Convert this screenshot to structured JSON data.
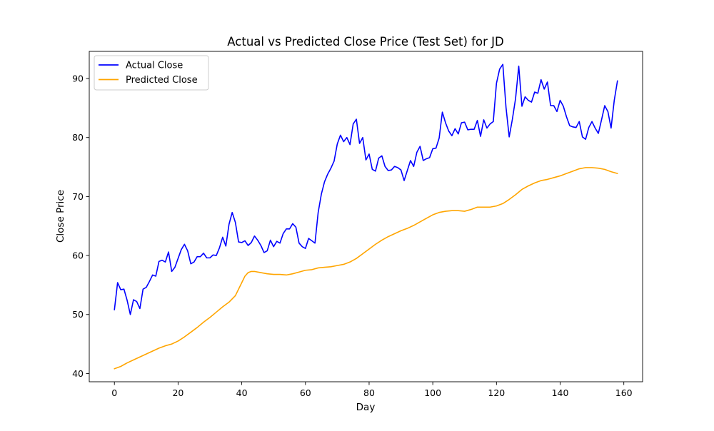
{
  "chart_data": {
    "type": "line",
    "title": "Actual vs Predicted Close Price (Test Set) for JD",
    "xlabel": "Day",
    "ylabel": "Close Price",
    "xlim": [
      -7.9,
      165.9
    ],
    "ylim": [
      38.6,
      94.6
    ],
    "xticks": [
      0,
      20,
      40,
      60,
      80,
      100,
      120,
      140,
      160
    ],
    "yticks": [
      40,
      50,
      60,
      70,
      80,
      90
    ],
    "grid": false,
    "legend_position": "upper-left",
    "series": [
      {
        "name": "Actual Close",
        "color": "#0000ff",
        "x": [
          0,
          1,
          2,
          3,
          4,
          5,
          6,
          7,
          8,
          9,
          10,
          11,
          12,
          13,
          14,
          15,
          16,
          17,
          18,
          19,
          20,
          21,
          22,
          23,
          24,
          25,
          26,
          27,
          28,
          29,
          30,
          31,
          32,
          33,
          34,
          35,
          36,
          37,
          38,
          39,
          40,
          41,
          42,
          43,
          44,
          45,
          46,
          47,
          48,
          49,
          50,
          51,
          52,
          53,
          54,
          55,
          56,
          57,
          58,
          59,
          60,
          61,
          62,
          63,
          64,
          65,
          66,
          67,
          68,
          69,
          70,
          71,
          72,
          73,
          74,
          75,
          76,
          77,
          78,
          79,
          80,
          81,
          82,
          83,
          84,
          85,
          86,
          87,
          88,
          89,
          90,
          91,
          92,
          93,
          94,
          95,
          96,
          97,
          98,
          99,
          100,
          101,
          102,
          103,
          104,
          105,
          106,
          107,
          108,
          109,
          110,
          111,
          112,
          113,
          114,
          115,
          116,
          117,
          118,
          119,
          120,
          121,
          122,
          123,
          124,
          125,
          126,
          127,
          128,
          129,
          130,
          131,
          132,
          133,
          134,
          135,
          136,
          137,
          138,
          139,
          140,
          141,
          142,
          143,
          144,
          145,
          146,
          147,
          148,
          149,
          150,
          151,
          152,
          153,
          154,
          155,
          156,
          157,
          158
        ],
        "y": [
          50.8,
          55.4,
          54.2,
          54.3,
          52.4,
          50.0,
          52.5,
          52.2,
          51.0,
          54.3,
          54.6,
          55.6,
          56.7,
          56.5,
          59.0,
          59.2,
          58.9,
          60.6,
          57.3,
          58.0,
          59.5,
          61.0,
          61.9,
          60.8,
          58.6,
          58.9,
          59.8,
          59.8,
          60.4,
          59.6,
          59.6,
          60.1,
          60.0,
          61.3,
          63.1,
          61.6,
          65.3,
          67.3,
          65.6,
          62.3,
          62.2,
          62.5,
          61.7,
          62.2,
          63.3,
          62.6,
          61.7,
          60.5,
          60.8,
          62.6,
          61.5,
          62.4,
          62.1,
          63.7,
          64.5,
          64.5,
          65.4,
          64.8,
          62.1,
          61.5,
          61.2,
          62.9,
          62.5,
          62.1,
          67.3,
          70.4,
          72.5,
          73.8,
          74.8,
          76.0,
          78.9,
          80.4,
          79.3,
          80.0,
          78.8,
          82.3,
          83.1,
          79.0,
          80.0,
          76.2,
          77.2,
          74.6,
          74.3,
          76.5,
          76.9,
          75.1,
          74.4,
          74.5,
          75.1,
          74.9,
          74.5,
          72.7,
          74.4,
          76.1,
          75.1,
          77.5,
          78.5,
          76.1,
          76.4,
          76.6,
          78.1,
          78.2,
          79.9,
          84.3,
          82.5,
          81.1,
          80.3,
          81.5,
          80.6,
          82.5,
          82.6,
          81.3,
          81.4,
          81.4,
          82.9,
          80.2,
          83.0,
          81.6,
          82.3,
          82.7,
          89.2,
          91.6,
          92.4,
          85.1,
          80.1,
          83.1,
          86.6,
          92.1,
          85.3,
          86.9,
          86.3,
          86.0,
          87.7,
          87.5,
          89.8,
          88.2,
          89.4,
          85.4,
          85.4,
          84.4,
          86.3,
          85.3,
          83.5,
          82.0,
          81.8,
          81.7,
          82.7,
          80.1,
          79.7,
          81.7,
          82.7,
          81.6,
          80.7,
          83.0,
          85.4,
          84.4,
          81.6,
          86.3,
          89.6
        ]
      },
      {
        "name": "Predicted Close",
        "color": "#ffa500",
        "x": [
          0,
          2,
          4,
          6,
          8,
          10,
          12,
          14,
          16,
          18,
          20,
          22,
          24,
          26,
          28,
          30,
          32,
          34,
          36,
          38,
          40,
          41,
          42,
          43,
          44,
          46,
          48,
          50,
          52,
          54,
          56,
          58,
          60,
          62,
          64,
          66,
          68,
          70,
          72,
          74,
          76,
          78,
          80,
          82,
          84,
          86,
          88,
          90,
          92,
          94,
          96,
          98,
          100,
          102,
          104,
          106,
          108,
          110,
          112,
          114,
          116,
          118,
          120,
          122,
          124,
          126,
          128,
          130,
          132,
          134,
          136,
          138,
          140,
          142,
          144,
          146,
          148,
          150,
          152,
          154,
          156,
          158
        ],
        "y": [
          40.8,
          41.2,
          41.8,
          42.3,
          42.8,
          43.3,
          43.8,
          44.3,
          44.7,
          45.0,
          45.5,
          46.2,
          47.0,
          47.8,
          48.7,
          49.5,
          50.4,
          51.3,
          52.1,
          53.2,
          55.4,
          56.5,
          57.1,
          57.3,
          57.3,
          57.1,
          56.9,
          56.8,
          56.8,
          56.7,
          56.9,
          57.2,
          57.5,
          57.6,
          57.9,
          58.0,
          58.1,
          58.3,
          58.5,
          58.9,
          59.5,
          60.3,
          61.1,
          61.9,
          62.6,
          63.2,
          63.7,
          64.2,
          64.6,
          65.1,
          65.7,
          66.3,
          66.9,
          67.3,
          67.5,
          67.6,
          67.6,
          67.5,
          67.8,
          68.2,
          68.2,
          68.2,
          68.4,
          68.8,
          69.5,
          70.3,
          71.2,
          71.8,
          72.3,
          72.7,
          72.9,
          73.2,
          73.5,
          73.9,
          74.3,
          74.7,
          74.9,
          74.9,
          74.8,
          74.6,
          74.2,
          73.9
        ]
      }
    ]
  }
}
